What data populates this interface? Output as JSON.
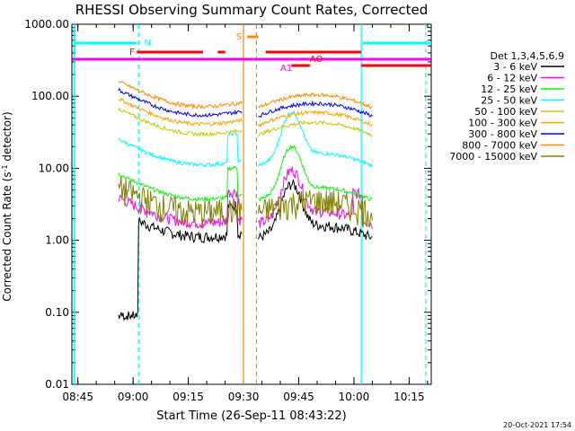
{
  "chart_data": {
    "type": "line",
    "title": "RHESSI Observing Summary Count Rates, Corrected",
    "xlabel": "Start Time (26-Sep-11 08:43:22)",
    "ylabel_prefix": "Corrected Count Rate (s",
    "ylabel_sup": "-1",
    "ylabel_suffix": " detector",
    "ylabel_end": ")",
    "yscale": "log",
    "ylim": [
      0.01,
      1000
    ],
    "xlim": [
      "08:43:22",
      "10:21:00"
    ],
    "x_ticks": [
      "08:45",
      "09:00",
      "09:15",
      "09:30",
      "09:45",
      "10:00",
      "10:15"
    ],
    "y_ticks": [
      "0.01",
      "0.10",
      "1.00",
      "10.00",
      "100.00",
      "1000.00"
    ],
    "legend_title": "Det 1,3,4,5,6,9",
    "legend_position": "right",
    "footer": "20-Oct-2021 17:54",
    "series": [
      {
        "name": "3 - 6 keV",
        "color": "#000000",
        "base": 0.9
      },
      {
        "name": "6 - 12 keV",
        "color": "#ff00ff",
        "base": 1.4
      },
      {
        "name": "12 - 25 keV",
        "color": "#00ff00",
        "base": 3.0
      },
      {
        "name": "25 - 50 keV",
        "color": "#00ffff",
        "base": 9.0
      },
      {
        "name": "50 - 100 keV",
        "color": "#c8c800",
        "base": 24
      },
      {
        "name": "100 - 300 keV",
        "color": "#ffa000",
        "base": 33
      },
      {
        "name": "300 - 800 keV",
        "color": "#0000ff",
        "base": 44
      },
      {
        "name": "800 - 7000 keV",
        "color": "#ff8800",
        "base": 58
      },
      {
        "name": "7000 - 15000 keV",
        "color": "#808000",
        "base": 2.0
      }
    ],
    "flags": [
      {
        "label": "N",
        "color": "#00ffff"
      },
      {
        "label": "F",
        "color": "#ff0000"
      },
      {
        "label": "S",
        "color": "#ff8800"
      },
      {
        "label": "AO",
        "color": "#ff0000"
      },
      {
        "label": "A1",
        "color": "#ff00ff"
      }
    ]
  }
}
